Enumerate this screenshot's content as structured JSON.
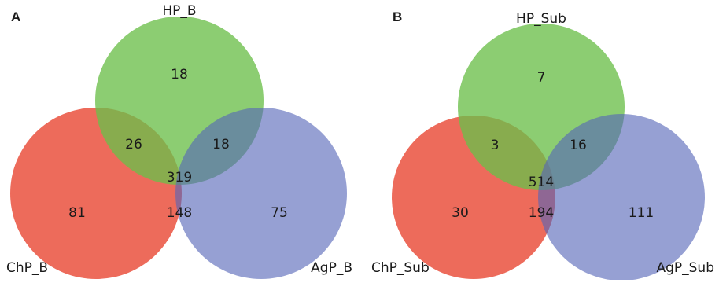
{
  "colors": {
    "green": "#6cbf4a",
    "red": "#e94a37",
    "blue": "#5566b8"
  },
  "panels": [
    {
      "letter": "A",
      "sets": {
        "top": "HP_B",
        "left": "ChP_B",
        "right": "AgP_B"
      },
      "counts": {
        "top_only": "18",
        "left_only": "81",
        "right_only": "75",
        "top_left": "26",
        "top_right": "18",
        "left_right": "148",
        "all": "319"
      }
    },
    {
      "letter": "B",
      "sets": {
        "top": "HP_Sub",
        "left": "ChP_Sub",
        "right": "AgP_Sub"
      },
      "counts": {
        "top_only": "7",
        "left_only": "30",
        "right_only": "111",
        "top_left": "3",
        "top_right": "16",
        "left_right": "194",
        "all": "514"
      }
    }
  ]
}
